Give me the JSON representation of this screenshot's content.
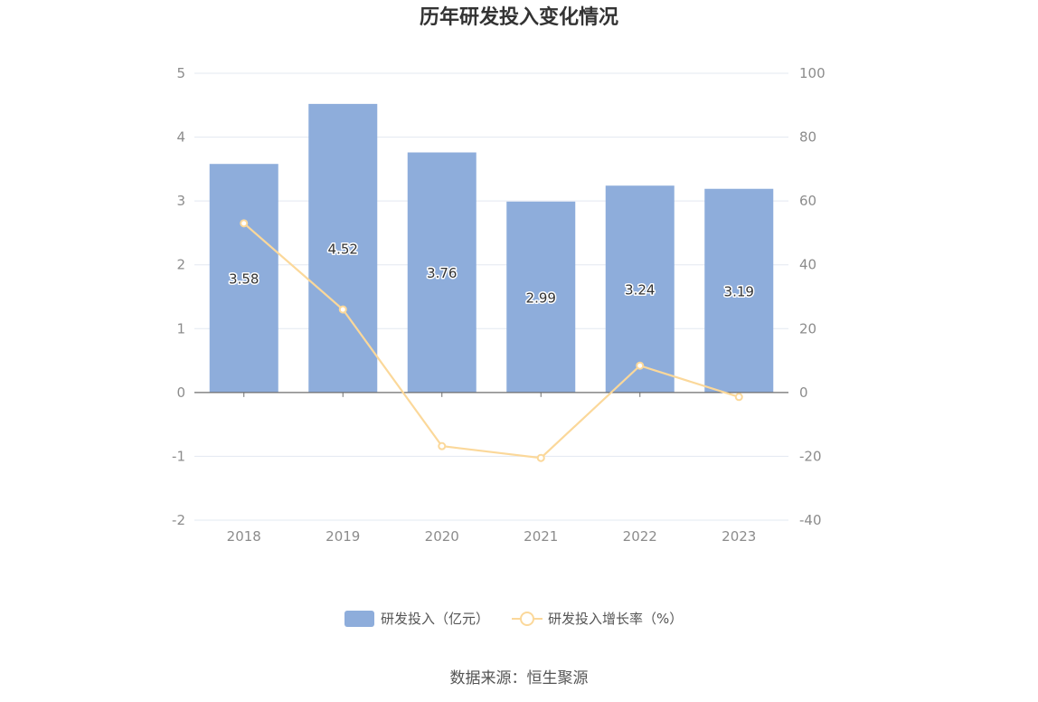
{
  "chart_data": {
    "type": "bar",
    "title": "历年研发投入变化情况",
    "categories": [
      "2018",
      "2019",
      "2020",
      "2021",
      "2022",
      "2023"
    ],
    "series": [
      {
        "name": "研发投入（亿元）",
        "type": "bar",
        "axis": "left",
        "values": [
          3.58,
          4.52,
          3.76,
          2.99,
          3.24,
          3.19
        ],
        "color": "#8eaddb"
      },
      {
        "name": "研发投入增长率（%）",
        "type": "line",
        "axis": "right",
        "values": [
          53.0,
          26.0,
          -16.8,
          -20.5,
          8.4,
          -1.4
        ],
        "color": "#fbd89a"
      }
    ],
    "y_left": {
      "min": -2,
      "max": 5,
      "ticks": [
        "5",
        "4",
        "3",
        "2",
        "1",
        "0",
        "-1",
        "-2"
      ]
    },
    "y_right": {
      "min": -40,
      "max": 100,
      "ticks": [
        "100",
        "80",
        "60",
        "40",
        "20",
        "0",
        "-20",
        "-40"
      ]
    },
    "grid": true,
    "legend_position": "bottom"
  },
  "source": "数据来源：恒生聚源"
}
